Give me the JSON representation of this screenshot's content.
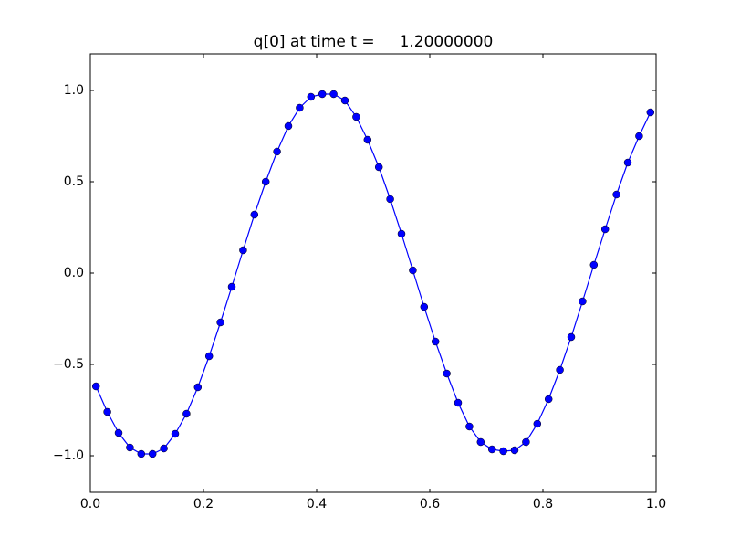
{
  "chart_data": {
    "type": "line",
    "title": "q[0] at time t =     1.20000000",
    "x": [
      0.01,
      0.03,
      0.05,
      0.07,
      0.09,
      0.11,
      0.13,
      0.15,
      0.17,
      0.19,
      0.21,
      0.23,
      0.25,
      0.27,
      0.29,
      0.31,
      0.33,
      0.35,
      0.37,
      0.39,
      0.41,
      0.43,
      0.45,
      0.47,
      0.49,
      0.51,
      0.53,
      0.55,
      0.57,
      0.59,
      0.61,
      0.63,
      0.65,
      0.67,
      0.69,
      0.71,
      0.73,
      0.75,
      0.77,
      0.79,
      0.81,
      0.83,
      0.85,
      0.87,
      0.89,
      0.91,
      0.93,
      0.95,
      0.97,
      0.99
    ],
    "series": [
      {
        "color": "#0000ff",
        "values": [
          -0.62,
          -0.76,
          -0.875,
          -0.955,
          -0.99,
          -0.99,
          -0.96,
          -0.88,
          -0.77,
          -0.625,
          -0.455,
          -0.27,
          -0.075,
          0.125,
          0.32,
          0.5,
          0.665,
          0.805,
          0.905,
          0.965,
          0.98,
          0.98,
          0.945,
          0.855,
          0.73,
          0.58,
          0.405,
          0.215,
          0.015,
          -0.185,
          -0.375,
          -0.55,
          -0.71,
          -0.84,
          -0.925,
          -0.965,
          -0.975,
          -0.97,
          -0.925,
          -0.825,
          -0.69,
          -0.53,
          -0.35,
          -0.155,
          0.045,
          0.24,
          0.43,
          0.605,
          0.75,
          0.88
        ]
      }
    ],
    "xlim": [
      0,
      1
    ],
    "xticks": [
      {
        "value": 0,
        "label": "0.0"
      },
      0.2,
      0.4,
      0.6,
      0.8,
      {
        "value": 1,
        "label": "1.0"
      }
    ],
    "ylim": [
      -1.2,
      1.2
    ],
    "yticks": [
      {
        "value": -1,
        "label": "−1.0"
      },
      {
        "value": -0.5,
        "label": "−0.5"
      },
      {
        "value": 0,
        "label": "0.0"
      },
      0.5,
      {
        "value": 1,
        "label": "1.0"
      }
    ],
    "grid": false
  }
}
